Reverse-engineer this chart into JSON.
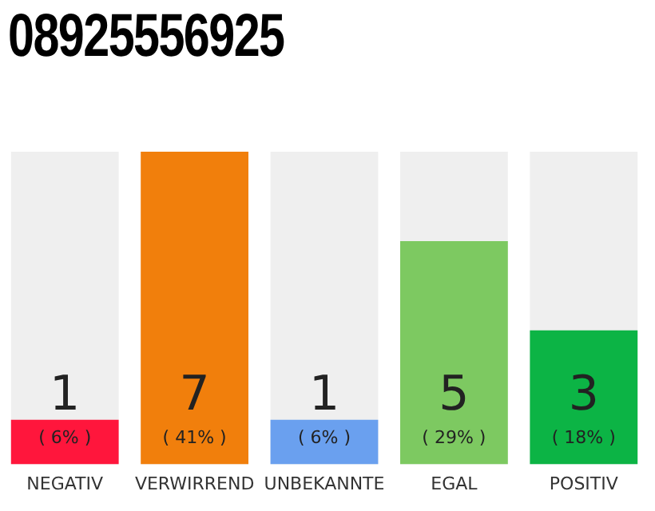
{
  "chart_data": {
    "type": "bar",
    "title": "08925556925",
    "categories": [
      "NEGATIV",
      "VERWIRREND",
      "UNBEKANNTE",
      "EGAL",
      "POSITIV"
    ],
    "values": [
      1,
      7,
      1,
      5,
      3
    ],
    "colors": [
      "#ff163c",
      "#f17f0c",
      "#6aa0ef",
      "#7dc961",
      "#0cb445"
    ],
    "tick_labels": "x",
    "grid": false,
    "legend": false,
    "data_labels": true,
    "annotations": [
      "( 6% )",
      "( 41% )",
      "( 6% )",
      "( 29% )",
      "( 18% )"
    ]
  }
}
